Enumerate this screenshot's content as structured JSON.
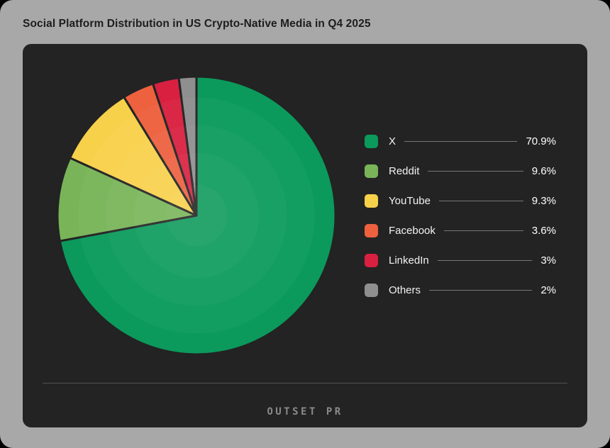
{
  "title": "Social Platform Distribution in US Crypto-Native Media in Q4 2025",
  "footer": {
    "logo": "OUTSET PR"
  },
  "colors": {
    "page_background": "#a8a8a8",
    "outer_background": "#000000",
    "card_background": "#232323",
    "title_text": "#1d1d1d",
    "legend_text": "#f2f2f2",
    "legend_leader_line": "#767676",
    "divider": "#525252",
    "logo_text": "#8a8a8a",
    "slice_border": "#232323"
  },
  "chart_data": {
    "type": "pie",
    "title": "Social Platform Distribution in US Crypto-Native Media in Q4 2025",
    "unit": "%",
    "start_angle_deg": 0,
    "direction": "clockwise",
    "legend_position": "right",
    "slices": [
      {
        "label": "X",
        "value": 70.9,
        "display": "70.9%",
        "color": "#0b9a5c"
      },
      {
        "label": "Reddit",
        "value": 9.6,
        "display": "9.6%",
        "color": "#79b558"
      },
      {
        "label": "YouTube",
        "value": 9.3,
        "display": "9.3%",
        "color": "#f8d14b"
      },
      {
        "label": "Facebook",
        "value": 3.6,
        "display": "3.6%",
        "color": "#ee613e"
      },
      {
        "label": "LinkedIn",
        "value": 3,
        "display": "3%",
        "color": "#d92040"
      },
      {
        "label": "Others",
        "value": 2,
        "display": "2%",
        "color": "#8f8f8f"
      }
    ]
  }
}
